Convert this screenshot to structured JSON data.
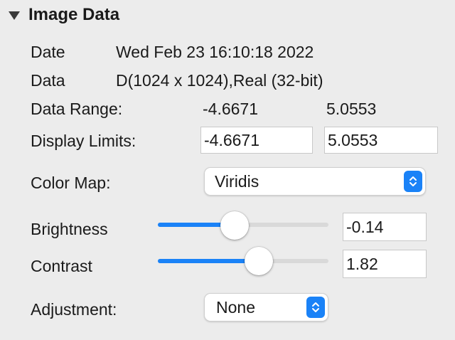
{
  "section": {
    "title": "Image Data",
    "expanded": true
  },
  "info": {
    "date_label": "Date",
    "date_value": "Wed Feb 23 16:10:18 2022",
    "data_label": "Data",
    "data_value": "D(1024 x 1024),Real (32-bit)",
    "range_label": "Data Range:",
    "range_min": "-4.6671",
    "range_max": "5.0553"
  },
  "display_limits": {
    "label": "Display Limits:",
    "min": "-4.6671",
    "max": "5.0553"
  },
  "color_map": {
    "label": "Color Map:",
    "selected": "Viridis"
  },
  "brightness": {
    "label": "Brightness",
    "value": "-0.14",
    "slider_fraction": 0.44
  },
  "contrast": {
    "label": "Contrast",
    "value": "1.82",
    "slider_fraction": 0.61
  },
  "adjustment": {
    "label": "Adjustment:",
    "selected": "None"
  },
  "colors": {
    "accent": "#1a82f7",
    "background": "#ececec"
  }
}
